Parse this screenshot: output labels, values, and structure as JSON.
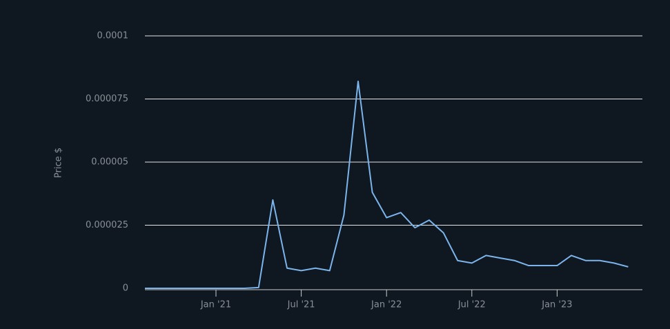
{
  "chart_data": {
    "type": "line",
    "y_label": "Price $",
    "x": [
      "2020-08",
      "2020-09",
      "2020-10",
      "2020-11",
      "2020-12",
      "2021-01",
      "2021-02",
      "2021-03",
      "2021-04",
      "2021-05",
      "2021-06",
      "2021-07",
      "2021-08",
      "2021-09",
      "2021-10",
      "2021-11",
      "2021-12",
      "2022-01",
      "2022-02",
      "2022-03",
      "2022-04",
      "2022-05",
      "2022-06",
      "2022-07",
      "2022-08",
      "2022-09",
      "2022-10",
      "2022-11",
      "2022-12",
      "2023-01",
      "2023-02",
      "2023-03",
      "2023-04",
      "2023-05",
      "2023-06"
    ],
    "series": [
      {
        "name": "Price",
        "color": "#7cb5ec",
        "values": [
          0,
          0,
          0,
          0,
          0,
          0,
          0,
          0,
          3e-07,
          3.5e-05,
          8e-06,
          7e-06,
          8e-06,
          7e-06,
          2.9e-05,
          8.2e-05,
          3.8e-05,
          2.8e-05,
          3e-05,
          2.4e-05,
          2.7e-05,
          2.2e-05,
          1.1e-05,
          1e-05,
          1.3e-05,
          1.2e-05,
          1.1e-05,
          9e-06,
          9e-06,
          9e-06,
          1.3e-05,
          1.1e-05,
          1.1e-05,
          1e-05,
          8.5e-06
        ]
      }
    ],
    "xlim": [
      "2020-08",
      "2023-07"
    ],
    "xticks": [
      {
        "value": "2021-01",
        "label": "Jan '21"
      },
      {
        "value": "2021-07",
        "label": "Jul '21"
      },
      {
        "value": "2022-01",
        "label": "Jan '22"
      },
      {
        "value": "2022-07",
        "label": "Jul '22"
      },
      {
        "value": "2023-01",
        "label": "Jan '23"
      }
    ],
    "ylim": [
      0,
      0.0001
    ],
    "yticks": [
      0,
      2.5e-05,
      5e-05,
      7.5e-05,
      0.0001
    ],
    "grid": true
  }
}
